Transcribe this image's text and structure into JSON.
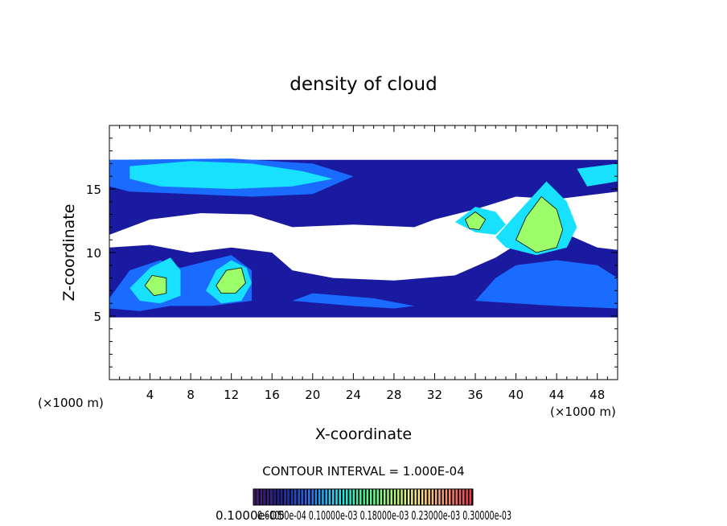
{
  "chart_data": {
    "type": "heatmap",
    "title": "density of cloud",
    "xlabel": "X-coordinate",
    "ylabel": "Z-coordinate",
    "x_unit_note": "(×1000 m)",
    "y_unit_note": "(×1000 m)",
    "xlim": [
      0,
      50
    ],
    "ylim": [
      0,
      20
    ],
    "x_ticks": [
      4,
      8,
      12,
      16,
      20,
      24,
      28,
      32,
      36,
      40,
      44,
      48
    ],
    "y_ticks": [
      5,
      10,
      15
    ],
    "contour_interval_text": "CONTOUR INTERVAL = 1.000E-04",
    "colorbar_labels_text": "0.1000e-05",
    "colorbar_overprinted_text": "0.60000e-04 0.10000e-03 0.18000e-03 0.23000e-03 0.30000e-03",
    "colorbar_min": 1e-06,
    "colorbar_max": 0.0003,
    "colormap": [
      "#4b0f7a",
      "#1a1aa0",
      "#1a6bff",
      "#18e0ff",
      "#30ff9a",
      "#9cff6a",
      "#fff07a",
      "#ff9a70",
      "#ff3050"
    ],
    "regions": [
      {
        "level": 4e-05,
        "points": [
          [
            0,
            17.3
          ],
          [
            50,
            17.3
          ],
          [
            50,
            14.8
          ],
          [
            44,
            14.2
          ],
          [
            40,
            14.4
          ],
          [
            36,
            13.4
          ],
          [
            32,
            12.6
          ],
          [
            30,
            12.0
          ],
          [
            24,
            12.2
          ],
          [
            18,
            12.0
          ],
          [
            14,
            13.0
          ],
          [
            9,
            13.1
          ],
          [
            4,
            12.6
          ],
          [
            0,
            11.4
          ]
        ]
      },
      {
        "level": 4e-05,
        "points": [
          [
            0,
            10.4
          ],
          [
            4,
            10.6
          ],
          [
            8,
            10.0
          ],
          [
            12,
            10.4
          ],
          [
            16,
            10.0
          ],
          [
            18,
            8.6
          ],
          [
            22,
            8.0
          ],
          [
            28,
            7.8
          ],
          [
            34,
            8.2
          ],
          [
            38,
            9.6
          ],
          [
            40,
            10.6
          ],
          [
            44,
            11.8
          ],
          [
            48,
            10.4
          ],
          [
            50,
            10.2
          ],
          [
            50,
            4.9
          ],
          [
            0,
            4.9
          ]
        ]
      },
      {
        "level": 6e-05,
        "points": [
          [
            0,
            17.3
          ],
          [
            12,
            17.4
          ],
          [
            20,
            17.0
          ],
          [
            24,
            16.0
          ],
          [
            20,
            14.6
          ],
          [
            14,
            14.4
          ],
          [
            8,
            14.6
          ],
          [
            2,
            14.8
          ],
          [
            0,
            15.2
          ]
        ]
      },
      {
        "level": 6e-05,
        "points": [
          [
            36,
            6.2
          ],
          [
            38,
            8.0
          ],
          [
            40,
            9.0
          ],
          [
            44,
            9.4
          ],
          [
            48,
            9.0
          ],
          [
            50,
            8.0
          ],
          [
            50,
            5.6
          ],
          [
            44,
            5.8
          ],
          [
            40,
            6.0
          ]
        ]
      },
      {
        "level": 6e-05,
        "points": [
          [
            0,
            6.4
          ],
          [
            2,
            8.6
          ],
          [
            5,
            9.4
          ],
          [
            7,
            8.8
          ],
          [
            9,
            9.2
          ],
          [
            12,
            9.8
          ],
          [
            14,
            8.6
          ],
          [
            14,
            6.2
          ],
          [
            10,
            5.8
          ],
          [
            6,
            5.8
          ],
          [
            3,
            5.4
          ],
          [
            0,
            5.6
          ]
        ]
      },
      {
        "level": 6e-05,
        "points": [
          [
            18,
            6.2
          ],
          [
            24,
            5.8
          ],
          [
            28,
            5.6
          ],
          [
            30,
            5.8
          ],
          [
            26,
            6.4
          ],
          [
            20,
            6.8
          ]
        ]
      },
      {
        "level": 0.0001,
        "points": [
          [
            2,
            16.8
          ],
          [
            8,
            17.2
          ],
          [
            14,
            17.0
          ],
          [
            19,
            16.4
          ],
          [
            22,
            15.8
          ],
          [
            18,
            15.2
          ],
          [
            12,
            15.0
          ],
          [
            5,
            15.2
          ],
          [
            2,
            15.8
          ]
        ]
      },
      {
        "level": 0.0001,
        "points": [
          [
            46,
            16.6
          ],
          [
            50,
            17.0
          ],
          [
            50,
            15.6
          ],
          [
            47,
            15.2
          ]
        ]
      },
      {
        "level": 0.0001,
        "points": [
          [
            34,
            12.4
          ],
          [
            36,
            13.6
          ],
          [
            38,
            13.2
          ],
          [
            39,
            12.2
          ],
          [
            38,
            11.4
          ],
          [
            36,
            11.6
          ]
        ]
      },
      {
        "level": 0.0001,
        "points": [
          [
            38,
            11.2
          ],
          [
            40,
            13.0
          ],
          [
            43,
            15.6
          ],
          [
            45,
            14.0
          ],
          [
            46,
            12.0
          ],
          [
            45,
            10.4
          ],
          [
            42,
            9.8
          ],
          [
            39,
            10.4
          ]
        ]
      },
      {
        "level": 0.0001,
        "points": [
          [
            2,
            7.2
          ],
          [
            4,
            8.8
          ],
          [
            6,
            9.6
          ],
          [
            7,
            8.6
          ],
          [
            7,
            6.6
          ],
          [
            5,
            6.0
          ],
          [
            3,
            6.2
          ]
        ]
      },
      {
        "level": 0.0001,
        "points": [
          [
            9.5,
            7.0
          ],
          [
            10.5,
            8.6
          ],
          [
            12,
            9.4
          ],
          [
            13.5,
            8.8
          ],
          [
            14,
            7.6
          ],
          [
            13,
            6.2
          ],
          [
            11,
            6.0
          ]
        ]
      },
      {
        "level": 0.00018,
        "points": [
          [
            40,
            11.0
          ],
          [
            41,
            12.8
          ],
          [
            42.5,
            14.4
          ],
          [
            44,
            13.4
          ],
          [
            44.6,
            11.8
          ],
          [
            44,
            10.4
          ],
          [
            42,
            10.0
          ]
        ]
      },
      {
        "level": 0.00018,
        "points": [
          [
            10.5,
            7.4
          ],
          [
            11.5,
            8.6
          ],
          [
            13,
            8.8
          ],
          [
            13.4,
            7.6
          ],
          [
            12.4,
            6.8
          ],
          [
            11,
            6.8
          ]
        ]
      },
      {
        "level": 0.00018,
        "points": [
          [
            3.5,
            7.4
          ],
          [
            4.2,
            8.2
          ],
          [
            5.6,
            8.0
          ],
          [
            5.6,
            6.8
          ],
          [
            4.4,
            6.6
          ]
        ]
      },
      {
        "level": 0.00018,
        "points": [
          [
            35,
            12.6
          ],
          [
            36,
            13.2
          ],
          [
            37,
            12.6
          ],
          [
            36.4,
            11.8
          ],
          [
            35.4,
            11.9
          ]
        ]
      }
    ]
  }
}
